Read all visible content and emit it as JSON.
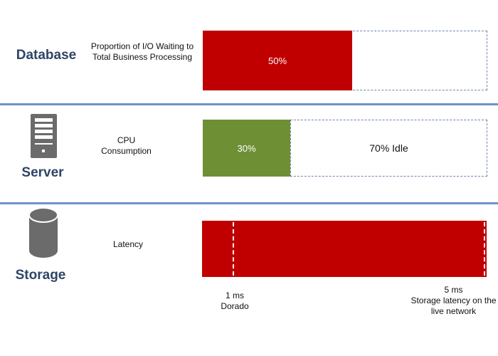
{
  "rows": [
    {
      "title": "Database",
      "metric": "Proportion of I/O Waiting to Total Business Processing",
      "value_label": "50%",
      "value_percent": 50,
      "color": "#c00000"
    },
    {
      "title": "Server",
      "metric": "CPU Consumption",
      "value_label": "30%",
      "value_percent": 30,
      "idle_label": "70% Idle",
      "color": "#6f8f35"
    },
    {
      "title": "Storage",
      "metric": "Latency",
      "color": "#c00000",
      "markers": [
        {
          "value_ms": 1,
          "label": "1 ms",
          "sub": "Dorado"
        },
        {
          "value_ms": 5,
          "label": "5 ms",
          "sub": "Storage latency on the live network"
        }
      ]
    }
  ],
  "colors": {
    "separator": "#6d93c7",
    "title": "#2f4466",
    "icon": "#6b6b6b"
  }
}
